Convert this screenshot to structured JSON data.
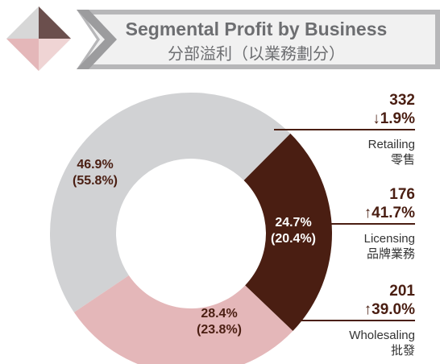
{
  "chart_data": {
    "type": "donut",
    "title": "Segmental Profit by Business",
    "subtitle": "分部溢利（以業務劃分）",
    "categories": [
      "Retailing",
      "Licensing",
      "Wholesaling"
    ],
    "categories_zh": [
      "零售",
      "品牌業務",
      "批發"
    ],
    "values": [
      46.9,
      24.7,
      28.4
    ],
    "value_labels": [
      "46.9%",
      "24.7%",
      "28.4%"
    ],
    "prior_values": [
      55.8,
      20.4,
      23.8
    ],
    "prior_value_labels": [
      "(55.8%)",
      "(20.4%)",
      "(23.8%)"
    ],
    "profit": [
      332,
      176,
      201
    ],
    "change": [
      -1.9,
      41.7,
      39.0
    ],
    "change_labels": [
      "↓1.9%",
      "↑41.7%",
      "↑39.0%"
    ],
    "colors": [
      "#d1d2d4",
      "#4a1e12",
      "#e4b7b9"
    ]
  }
}
